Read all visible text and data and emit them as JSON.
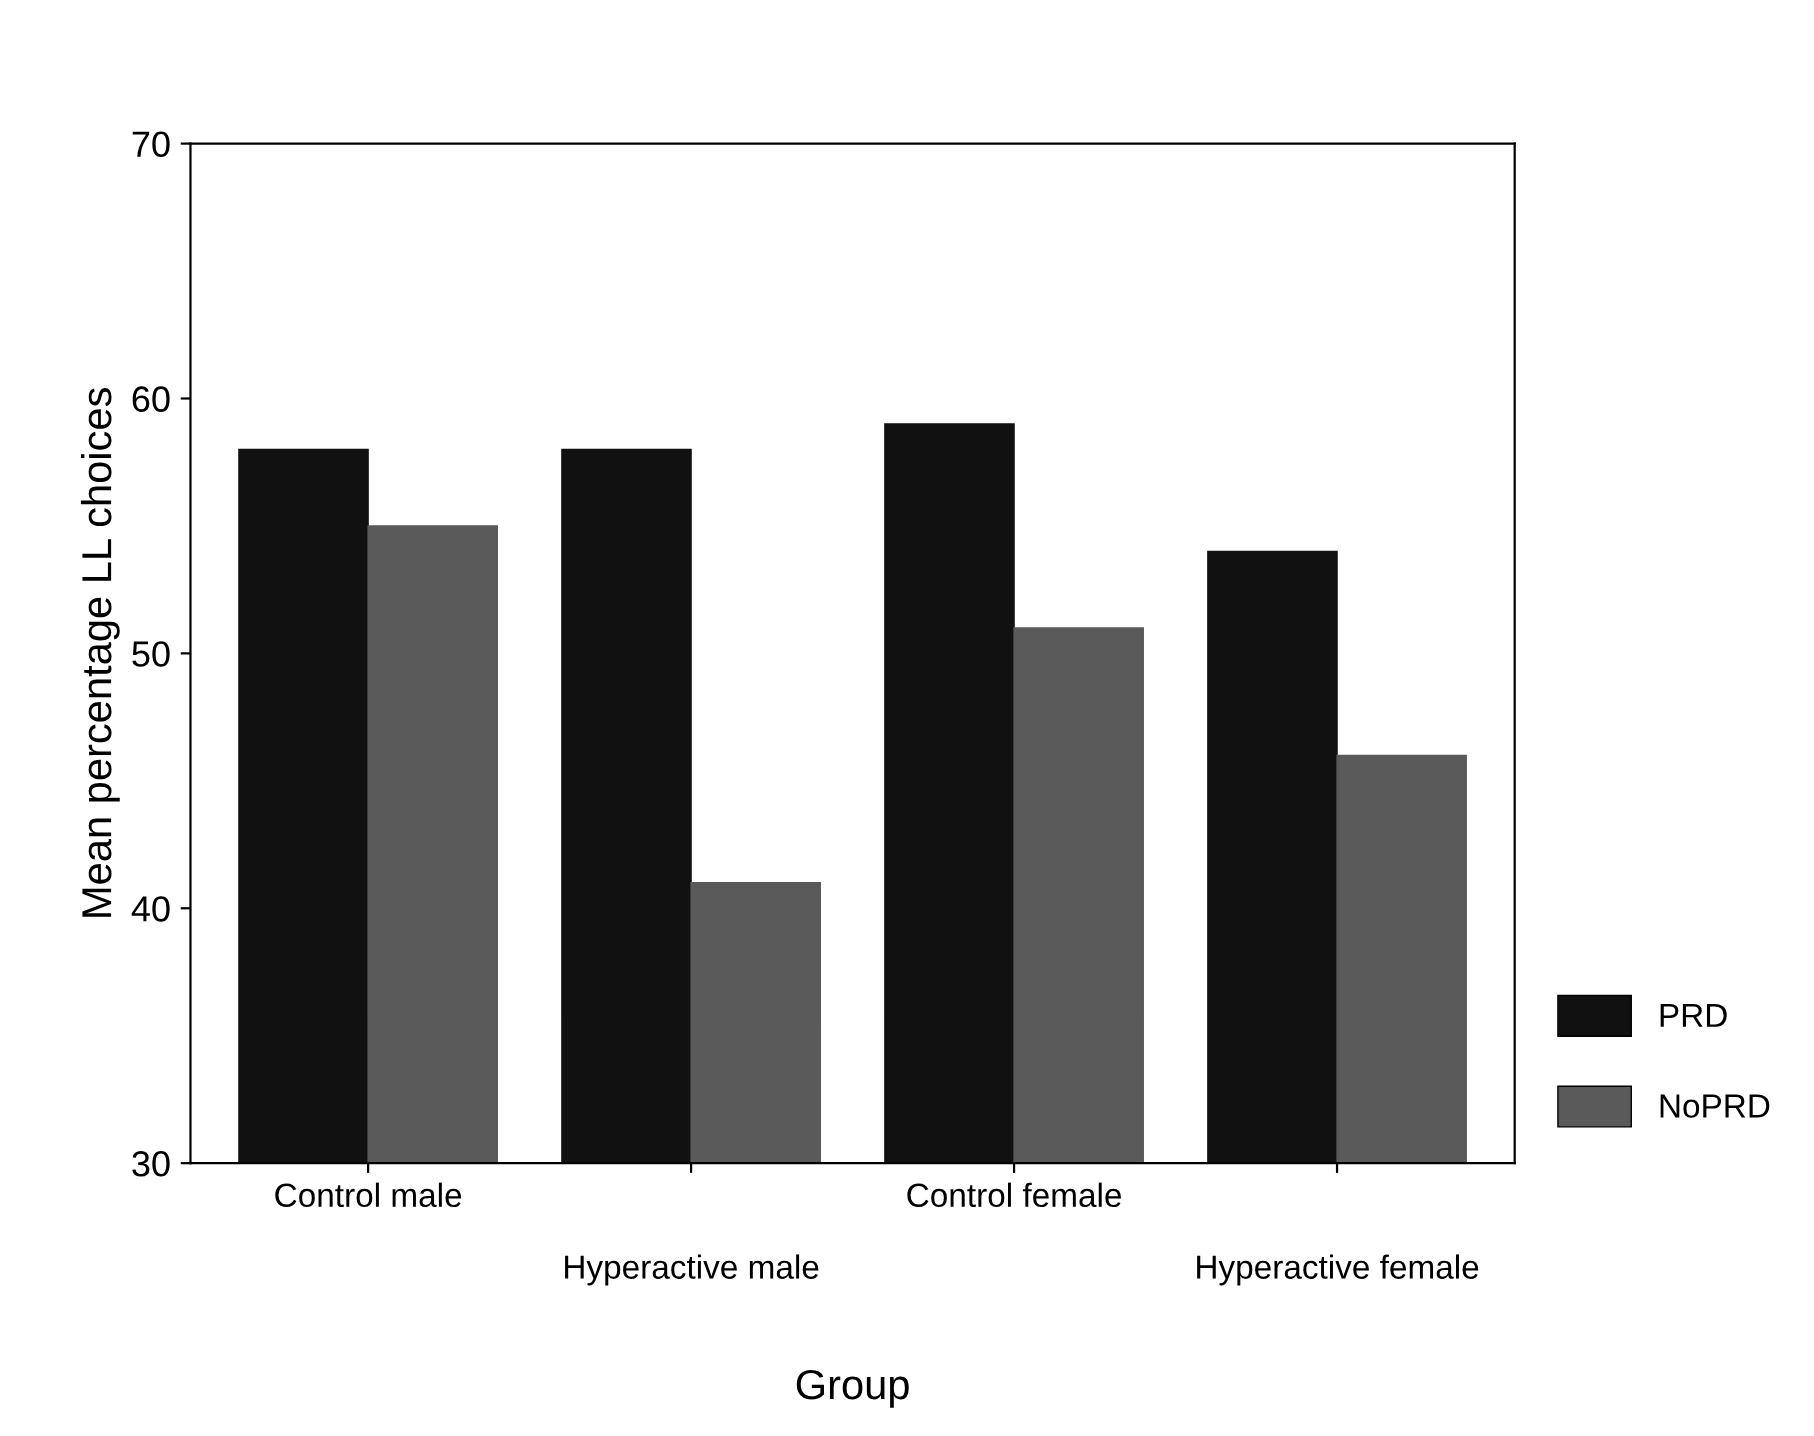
{
  "chart_data": {
    "type": "bar",
    "xlabel": "Group",
    "ylabel": "Mean percentage LL choices",
    "categories": [
      "Control male",
      "Hyperactive male",
      "Control female",
      "Hyperactive female"
    ],
    "series": [
      {
        "name": "PRD",
        "color": "#111111",
        "values": [
          58,
          58,
          59,
          54
        ]
      },
      {
        "name": "NoPRD",
        "color": "#5a5a5a",
        "values": [
          55,
          41,
          51,
          46
        ]
      }
    ],
    "ylim": [
      30,
      70
    ],
    "yticks": [
      30,
      40,
      50,
      60,
      70
    ],
    "grid": false,
    "legend": "right"
  }
}
